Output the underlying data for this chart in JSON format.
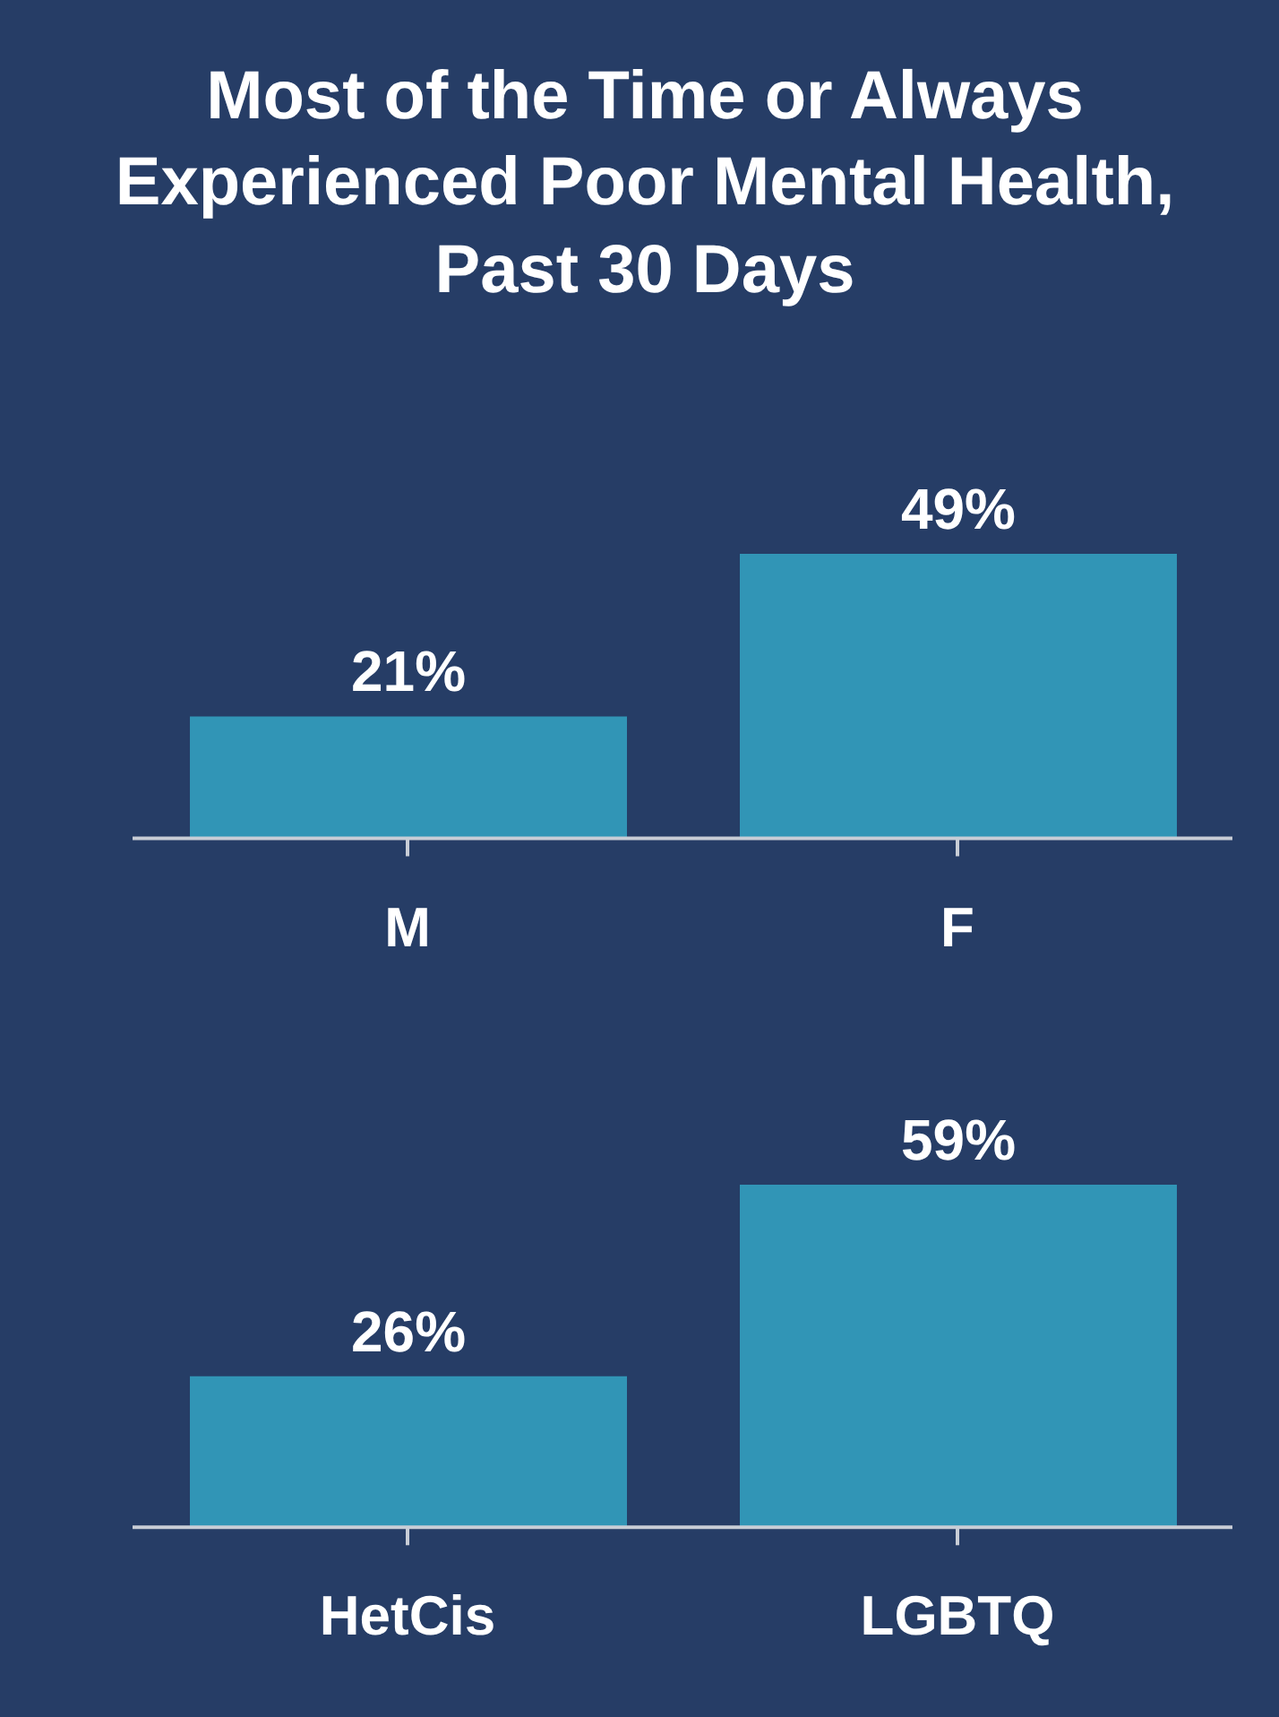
{
  "chart_data": [
    {
      "type": "bar",
      "title": "Most of the Time or Always Experienced Poor Mental Health, Past 30 Days",
      "categories": [
        "M",
        "F"
      ],
      "values": [
        21,
        49
      ],
      "value_labels": [
        "21%",
        "49%"
      ],
      "color": "#3195b6"
    },
    {
      "type": "bar",
      "categories": [
        "HetCis",
        "LGBTQ"
      ],
      "values": [
        26,
        59
      ],
      "value_labels": [
        "26%",
        "59%"
      ],
      "color": "#3195b6"
    }
  ]
}
